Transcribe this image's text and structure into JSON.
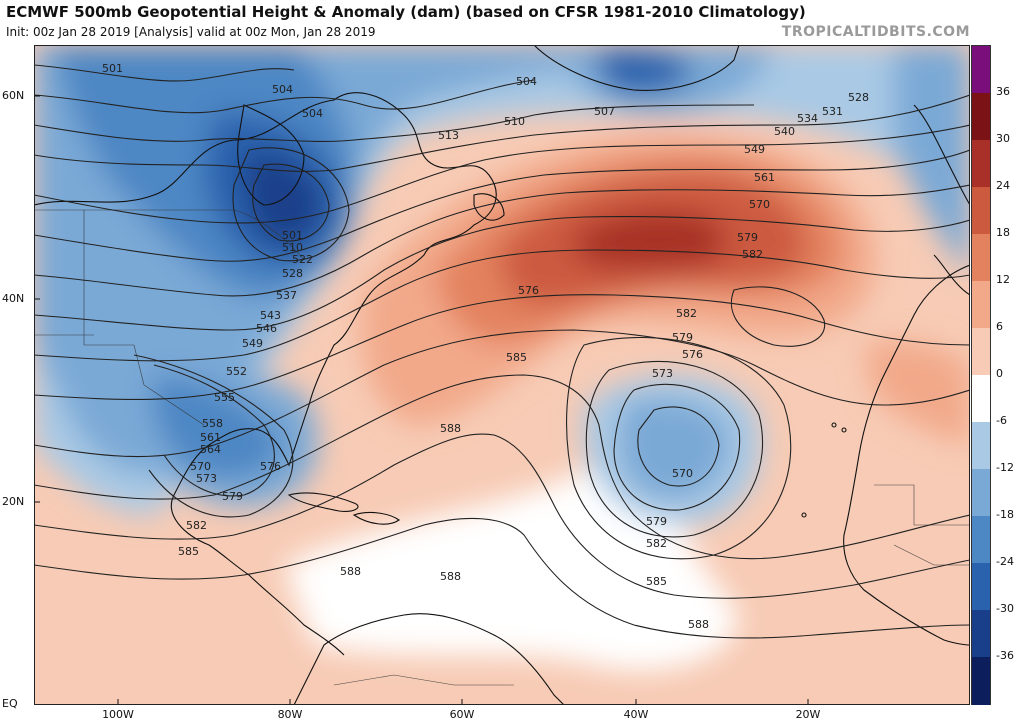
{
  "header": {
    "title": "ECMWF 500mb Geopotential Height & Anomaly (dam) (based on CFSR 1981-2010 Climatology)",
    "subtitle": "Init: 00z Jan 28 2019   [Analysis]   valid at 00z Mon, Jan 28 2019",
    "brand": "TROPICALTIDBITS.COM"
  },
  "map": {
    "lat_labels": [
      "60N",
      "40N",
      "20N",
      "EQ"
    ],
    "lon_labels": [
      "100W",
      "80W",
      "60W",
      "40W",
      "20W"
    ],
    "colors": {
      "neg36": "#0c1f5c",
      "neg30": "#1a3f8a",
      "neg24": "#2b62ad",
      "neg18": "#4d87c4",
      "neg12": "#7aa9d6",
      "neg6": "#a9c9e5",
      "zero": "#ffffff",
      "pos6": "#f7cbb5",
      "pos12": "#f2a98a",
      "pos18": "#e3825f",
      "pos24": "#cc5a3f",
      "pos30": "#a83028",
      "pos36": "#7a1216",
      "extreme": "#7a0e7a",
      "land": "#000000"
    },
    "contour_labels": [
      "501",
      "504",
      "504",
      "504",
      "507",
      "510",
      "513",
      "528",
      "531",
      "534",
      "540",
      "549",
      "561",
      "570",
      "579",
      "582",
      "576",
      "582",
      "585",
      "588",
      "579",
      "576",
      "573",
      "570",
      "579",
      "582",
      "585",
      "588",
      "588",
      "501",
      "510",
      "522",
      "528",
      "537",
      "543",
      "546",
      "549",
      "552",
      "555",
      "558",
      "561",
      "564",
      "570",
      "573",
      "576",
      "579",
      "582",
      "585",
      "588"
    ]
  },
  "colorbar": {
    "labels": [
      "36",
      "30",
      "24",
      "18",
      "12",
      "6",
      "0",
      "-6",
      "-12",
      "-18",
      "-24",
      "-30",
      "-36"
    ]
  }
}
